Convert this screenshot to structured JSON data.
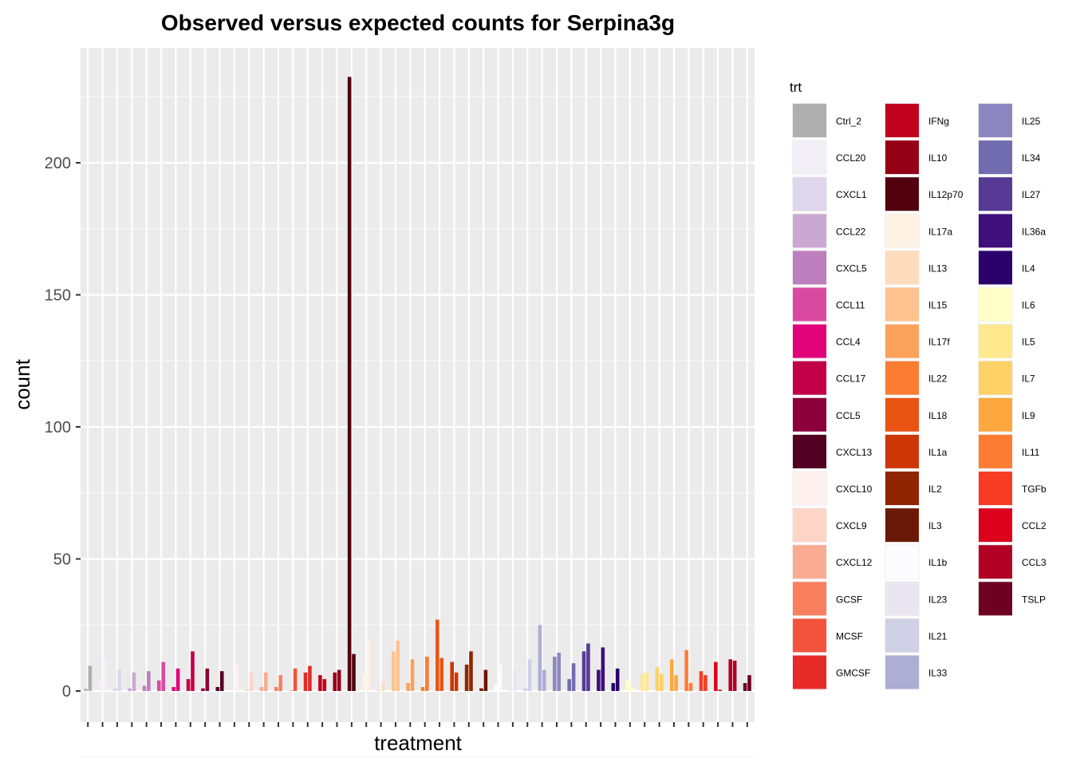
{
  "chart_data": {
    "type": "bar",
    "title": "Observed versus expected counts for Serpina3g",
    "xlabel": "treatment",
    "ylabel": "count",
    "ylim": [
      -10,
      235
    ],
    "yticks": [
      0,
      50,
      100,
      150,
      200
    ],
    "grid": true,
    "legend_position": "right",
    "legend": {
      "title": "trt",
      "entries": [
        {
          "label": "Ctrl_2",
          "color": "#afafaf"
        },
        {
          "label": "CCL20",
          "color": "#f3eff6"
        },
        {
          "label": "CXCL1",
          "color": "#ded6ea"
        },
        {
          "label": "CCL22",
          "color": "#cba8d2"
        },
        {
          "label": "CXCL5",
          "color": "#bd7fbd"
        },
        {
          "label": "CCL11",
          "color": "#d84aa0"
        },
        {
          "label": "CCL4",
          "color": "#e0037a"
        },
        {
          "label": "CCL17",
          "color": "#c20048"
        },
        {
          "label": "CCL5",
          "color": "#8b003a"
        },
        {
          "label": "CXCL13",
          "color": "#520021"
        },
        {
          "label": "CXCL10",
          "color": "#fdf0ee"
        },
        {
          "label": "CXCL9",
          "color": "#fcd5c6"
        },
        {
          "label": "CXCL12",
          "color": "#f9ac91"
        },
        {
          "label": "GCSF",
          "color": "#f8805e"
        },
        {
          "label": "MCSF",
          "color": "#f3533c"
        },
        {
          "label": "GMCSF",
          "color": "#e52a27"
        },
        {
          "label": "IFNg",
          "color": "#c2001f"
        },
        {
          "label": "IL10",
          "color": "#940015"
        },
        {
          "label": "IL12p70",
          "color": "#51000d"
        },
        {
          "label": "IL17a",
          "color": "#fef2e5"
        },
        {
          "label": "IL13",
          "color": "#fddcbd"
        },
        {
          "label": "IL15",
          "color": "#fdc38e"
        },
        {
          "label": "IL17f",
          "color": "#fca15c"
        },
        {
          "label": "IL22",
          "color": "#fb7d34"
        },
        {
          "label": "IL18",
          "color": "#ea5412"
        },
        {
          "label": "IL1a",
          "color": "#cd3605"
        },
        {
          "label": "IL2",
          "color": "#8f2502"
        },
        {
          "label": "IL3",
          "color": "#6a1906"
        },
        {
          "label": "IL1b",
          "color": "#fcfbfd"
        },
        {
          "label": "IL23",
          "color": "#e9e6f2"
        },
        {
          "label": "IL21",
          "color": "#d0d0e6"
        },
        {
          "label": "IL33",
          "color": "#adadd5"
        },
        {
          "label": "IL25",
          "color": "#8e86c0"
        },
        {
          "label": "IL34",
          "color": "#716cb0"
        },
        {
          "label": "IL27",
          "color": "#563a96"
        },
        {
          "label": "IL36a",
          "color": "#3f0f7b"
        },
        {
          "label": "IL4",
          "color": "#2a006a"
        },
        {
          "label": "IL6",
          "color": "#ffffc7"
        },
        {
          "label": "IL5",
          "color": "#ffe88d"
        },
        {
          "label": "IL7",
          "color": "#fed167"
        },
        {
          "label": "IL9",
          "color": "#fea73f"
        },
        {
          "label": "IL11",
          "color": "#fd7c33"
        },
        {
          "label": "TGFb",
          "color": "#f83b25"
        },
        {
          "label": "CCL2",
          "color": "#dc001c"
        },
        {
          "label": "CCL3",
          "color": "#b10024"
        },
        {
          "label": "TSLP",
          "color": "#6e0024"
        }
      ]
    },
    "series_note": "",
    "values": [
      [
        0.8,
        9.5
      ],
      [
        4,
        12.5
      ],
      [
        1,
        8
      ],
      [
        1,
        7
      ],
      [
        2,
        7.5
      ],
      [
        4,
        11
      ],
      [
        1.5,
        8.5
      ],
      [
        4.5,
        15
      ],
      [
        1,
        8.5
      ],
      [
        1.5,
        7.5
      ],
      [
        0,
        10
      ],
      [
        0.5,
        7
      ],
      [
        1.5,
        7
      ],
      [
        1.5,
        6
      ],
      [
        0,
        8.5
      ],
      [
        7,
        9.5
      ],
      [
        6,
        4.5
      ],
      [
        7,
        8
      ],
      [
        232.5,
        14
      ],
      [
        6.5,
        19
      ],
      [
        0.5,
        3
      ],
      [
        15,
        19
      ],
      [
        3,
        12
      ],
      [
        1.5,
        13
      ],
      [
        27,
        12.5
      ],
      [
        11,
        7
      ],
      [
        10,
        15
      ],
      [
        1,
        8
      ],
      [
        2.5,
        10
      ],
      [
        0.5,
        8
      ],
      [
        1,
        12
      ],
      [
        25,
        8
      ],
      [
        13,
        14.5
      ],
      [
        4.5,
        10.5
      ],
      [
        15,
        18
      ],
      [
        8,
        16.5
      ],
      [
        3,
        8.5
      ],
      [
        4,
        1.5
      ],
      [
        6.5,
        7
      ],
      [
        9,
        6.5
      ],
      [
        12,
        6
      ],
      [
        15.5,
        3
      ],
      [
        7.5,
        6
      ],
      [
        11,
        0.5
      ],
      [
        12,
        11.5
      ],
      [
        3,
        6
      ]
    ]
  }
}
